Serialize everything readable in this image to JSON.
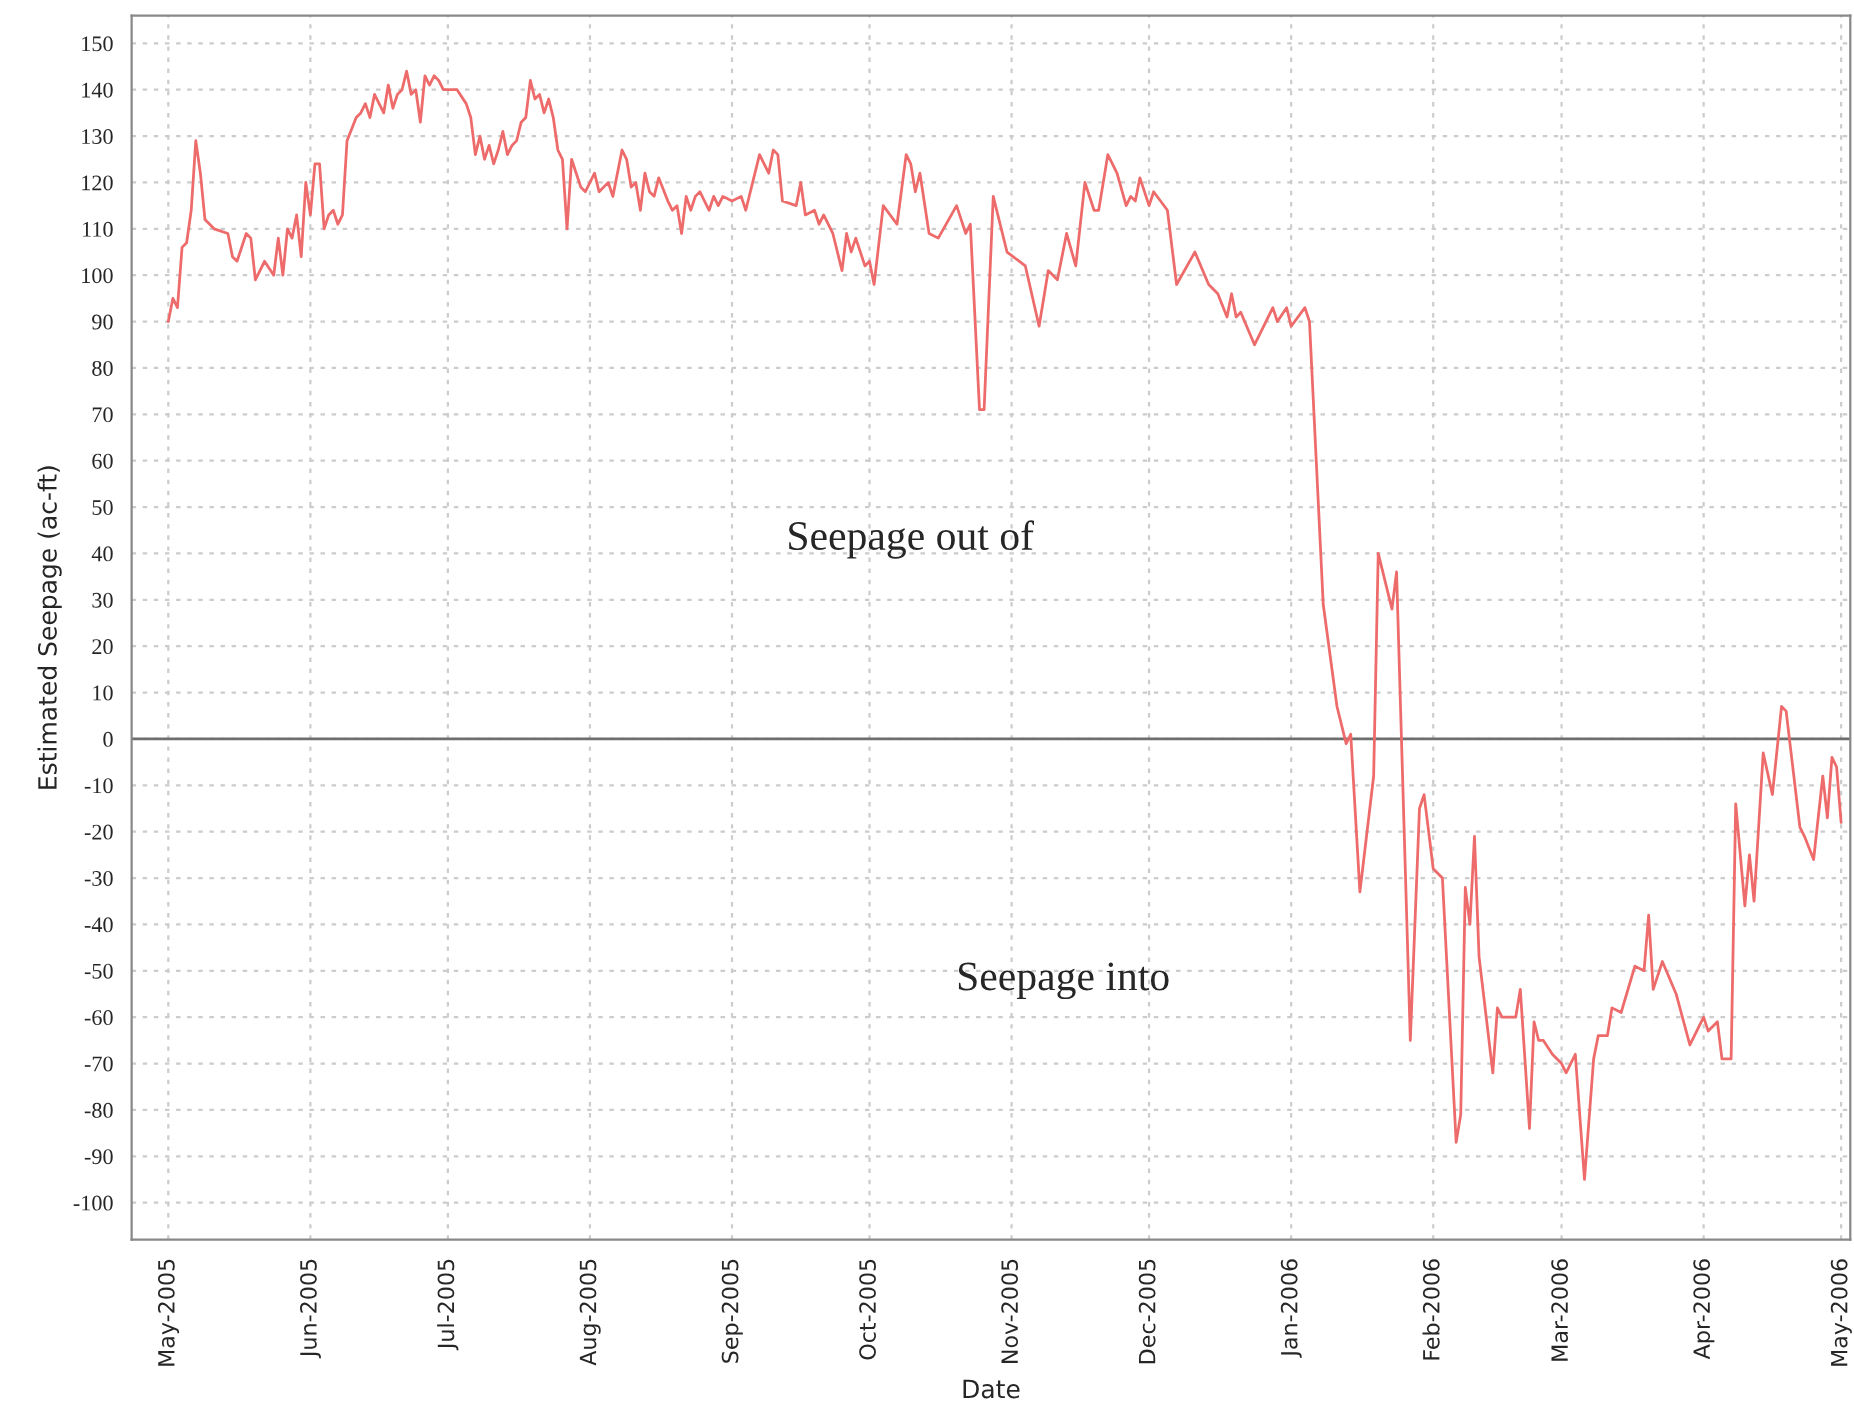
{
  "chart_data": {
    "type": "line",
    "xlabel": "Date",
    "ylabel": "Estimated Seepage (ac-ft)",
    "annotations": [
      "Seepage out of",
      "Seepage into"
    ],
    "x": [
      "2005-05-01",
      "2005-05-02",
      "2005-05-03",
      "2005-05-04",
      "2005-05-05",
      "2005-05-06",
      "2005-05-07",
      "2005-05-08",
      "2005-05-09",
      "2005-05-11",
      "2005-05-14",
      "2005-05-15",
      "2005-05-16",
      "2005-05-18",
      "2005-05-19",
      "2005-05-20",
      "2005-05-21",
      "2005-05-22",
      "2005-05-24",
      "2005-05-25",
      "2005-05-26",
      "2005-05-27",
      "2005-05-28",
      "2005-05-29",
      "2005-05-30",
      "2005-05-31",
      "2005-06-01",
      "2005-06-02",
      "2005-06-03",
      "2005-06-04",
      "2005-06-05",
      "2005-06-06",
      "2005-06-07",
      "2005-06-08",
      "2005-06-09",
      "2005-06-11",
      "2005-06-12",
      "2005-06-13",
      "2005-06-14",
      "2005-06-15",
      "2005-06-16",
      "2005-06-17",
      "2005-06-18",
      "2005-06-19",
      "2005-06-20",
      "2005-06-21",
      "2005-06-22",
      "2005-06-23",
      "2005-06-24",
      "2005-06-25",
      "2005-06-26",
      "2005-06-27",
      "2005-06-28",
      "2005-06-29",
      "2005-06-30",
      "2005-07-03",
      "2005-07-05",
      "2005-07-06",
      "2005-07-07",
      "2005-07-08",
      "2005-07-09",
      "2005-07-10",
      "2005-07-11",
      "2005-07-12",
      "2005-07-13",
      "2005-07-14",
      "2005-07-15",
      "2005-07-16",
      "2005-07-17",
      "2005-07-18",
      "2005-07-19",
      "2005-07-20",
      "2005-07-21",
      "2005-07-22",
      "2005-07-23",
      "2005-07-24",
      "2005-07-25",
      "2005-07-26",
      "2005-07-27",
      "2005-07-28",
      "2005-07-29",
      "2005-07-30",
      "2005-07-31",
      "2005-08-02",
      "2005-08-03",
      "2005-08-04",
      "2005-08-05",
      "2005-08-06",
      "2005-08-08",
      "2005-08-09",
      "2005-08-10",
      "2005-08-11",
      "2005-08-12",
      "2005-08-13",
      "2005-08-14",
      "2005-08-15",
      "2005-08-16",
      "2005-08-18",
      "2005-08-19",
      "2005-08-20",
      "2005-08-21",
      "2005-08-22",
      "2005-08-23",
      "2005-08-24",
      "2005-08-25",
      "2005-08-27",
      "2005-08-28",
      "2005-08-29",
      "2005-08-30",
      "2005-09-01",
      "2005-09-03",
      "2005-09-04",
      "2005-09-07",
      "2005-09-09",
      "2005-09-10",
      "2005-09-11",
      "2005-09-12",
      "2005-09-15",
      "2005-09-16",
      "2005-09-17",
      "2005-09-19",
      "2005-09-20",
      "2005-09-21",
      "2005-09-23",
      "2005-09-25",
      "2005-09-26",
      "2005-09-27",
      "2005-09-28",
      "2005-09-30",
      "2005-10-01",
      "2005-10-02",
      "2005-10-04",
      "2005-10-07",
      "2005-10-09",
      "2005-10-10",
      "2005-10-11",
      "2005-10-12",
      "2005-10-14",
      "2005-10-16",
      "2005-10-20",
      "2005-10-22",
      "2005-10-23",
      "2005-10-25",
      "2005-10-26",
      "2005-10-28",
      "2005-10-31",
      "2005-11-04",
      "2005-11-07",
      "2005-11-09",
      "2005-11-11",
      "2005-11-13",
      "2005-11-15",
      "2005-11-17",
      "2005-11-19",
      "2005-11-20",
      "2005-11-22",
      "2005-11-24",
      "2005-11-26",
      "2005-11-27",
      "2005-11-28",
      "2005-11-29",
      "2005-12-01",
      "2005-12-02",
      "2005-12-05",
      "2005-12-07",
      "2005-12-11",
      "2005-12-14",
      "2005-12-16",
      "2005-12-18",
      "2005-12-19",
      "2005-12-20",
      "2005-12-21",
      "2005-12-24",
      "2005-12-28",
      "2005-12-29",
      "2005-12-31",
      "2006-01-01",
      "2006-01-04",
      "2006-01-05",
      "2006-01-08",
      "2006-01-11",
      "2006-01-13",
      "2006-01-14",
      "2006-01-16",
      "2006-01-19",
      "2006-01-20",
      "2006-01-23",
      "2006-01-24",
      "2006-01-27",
      "2006-01-29",
      "2006-01-30",
      "2006-02-01",
      "2006-02-03",
      "2006-02-06",
      "2006-02-07",
      "2006-02-08",
      "2006-02-09",
      "2006-02-10",
      "2006-02-11",
      "2006-02-14",
      "2006-02-15",
      "2006-02-16",
      "2006-02-19",
      "2006-02-20",
      "2006-02-22",
      "2006-02-23",
      "2006-02-24",
      "2006-02-25",
      "2006-02-27",
      "2006-03-01",
      "2006-03-02",
      "2006-03-04",
      "2006-03-06",
      "2006-03-08",
      "2006-03-09",
      "2006-03-11",
      "2006-03-12",
      "2006-03-14",
      "2006-03-17",
      "2006-03-19",
      "2006-03-20",
      "2006-03-21",
      "2006-03-23",
      "2006-03-26",
      "2006-03-29",
      "2006-04-01",
      "2006-04-02",
      "2006-04-04",
      "2006-04-05",
      "2006-04-07",
      "2006-04-08",
      "2006-04-10",
      "2006-04-11",
      "2006-04-12",
      "2006-04-14",
      "2006-04-16",
      "2006-04-18",
      "2006-04-19",
      "2006-04-22",
      "2006-04-23",
      "2006-04-25",
      "2006-04-27",
      "2006-04-28",
      "2006-04-29",
      "2006-04-30",
      "2006-05-01"
    ],
    "series": [
      {
        "color": "#ee6b6b",
        "values": [
          90,
          95,
          93,
          106,
          107,
          114,
          129,
          122,
          112,
          110,
          109,
          104,
          103,
          109,
          108,
          99,
          101,
          103,
          100,
          108,
          100,
          110,
          108,
          113,
          104,
          120,
          113,
          124,
          124,
          110,
          113,
          114,
          111,
          113,
          129,
          134,
          135,
          137,
          134,
          139,
          137,
          135,
          141,
          136,
          139,
          140,
          144,
          139,
          140,
          133,
          143,
          141,
          143,
          142,
          140,
          140,
          137,
          134,
          126,
          130,
          125,
          128,
          124,
          127,
          131,
          126,
          128,
          129,
          133,
          134,
          142,
          138,
          139,
          135,
          138,
          134,
          127,
          125,
          110,
          125,
          122,
          119,
          118,
          122,
          118,
          119,
          120,
          117,
          127,
          125,
          119,
          120,
          114,
          122,
          118,
          117,
          121,
          116,
          114,
          115,
          109,
          117,
          114,
          117,
          118,
          114,
          117,
          115,
          117,
          116,
          117,
          114,
          126,
          122,
          127,
          126,
          116,
          115,
          120,
          113,
          114,
          111,
          113,
          109,
          101,
          109,
          105,
          108,
          102,
          103,
          98,
          115,
          111,
          126,
          124,
          118,
          122,
          109,
          108,
          115,
          109,
          111,
          71,
          71,
          117,
          105,
          102,
          89,
          101,
          99,
          109,
          102,
          120,
          114,
          114,
          126,
          122,
          115,
          117,
          116,
          121,
          115,
          118,
          114,
          98,
          105,
          98,
          96,
          91,
          96,
          91,
          92,
          85,
          93,
          90,
          93,
          89,
          93,
          90,
          29,
          7,
          -1,
          1,
          -33,
          -8,
          40,
          28,
          36,
          -65,
          -15,
          -12,
          -28,
          -30,
          -87,
          -81,
          -32,
          -40,
          -21,
          -47,
          -72,
          -58,
          -60,
          -60,
          -54,
          -84,
          -61,
          -65,
          -65,
          -68,
          -70,
          -72,
          -68,
          -95,
          -69,
          -64,
          -64,
          -58,
          -59,
          -49,
          -50,
          -38,
          -54,
          -48,
          -55,
          -66,
          -60,
          -63,
          -61,
          -69,
          -69,
          -14,
          -36,
          -25,
          -35,
          -3,
          -12,
          7,
          6,
          -19,
          -21,
          -26,
          -8,
          -17,
          -4,
          -6,
          -18
        ]
      }
    ],
    "xlim": [
      "2005-04-23",
      "2006-05-03"
    ],
    "xticks": [
      {
        "value": "2005-05-01",
        "label": "May-2005"
      },
      {
        "value": "2005-06-01",
        "label": "Jun-2005"
      },
      {
        "value": "2005-07-01",
        "label": "Jul-2005"
      },
      {
        "value": "2005-08-01",
        "label": "Aug-2005"
      },
      {
        "value": "2005-09-01",
        "label": "Sep-2005"
      },
      {
        "value": "2005-10-01",
        "label": "Oct-2005"
      },
      {
        "value": "2005-11-01",
        "label": "Nov-2005"
      },
      {
        "value": "2005-12-01",
        "label": "Dec-2005"
      },
      {
        "value": "2006-01-01",
        "label": "Jan-2006"
      },
      {
        "value": "2006-02-01",
        "label": "Feb-2006"
      },
      {
        "value": "2006-03-01",
        "label": "Mar-2006"
      },
      {
        "value": "2006-04-01",
        "label": "Apr-2006"
      },
      {
        "value": "2006-05-01",
        "label": "May-2006"
      }
    ],
    "ylim": [
      -108,
      156
    ],
    "yticks": [
      -100,
      -90,
      -80,
      -70,
      -60,
      -50,
      -40,
      -30,
      -20,
      -10,
      0,
      10,
      20,
      30,
      40,
      50,
      60,
      70,
      80,
      90,
      100,
      110,
      120,
      130,
      140,
      150
    ],
    "ref_lines": [
      {
        "axis": "y",
        "value": 0,
        "color": "#6e6e6e"
      }
    ],
    "grid": true,
    "legend": false,
    "marker": "none",
    "line_style": "solid"
  }
}
